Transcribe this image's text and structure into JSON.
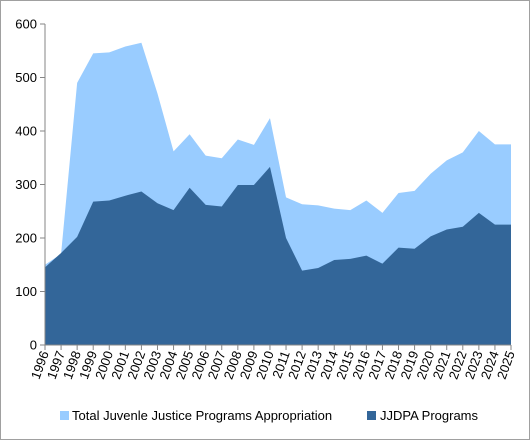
{
  "chart_data": {
    "type": "area",
    "title": "",
    "xlabel": "",
    "ylabel": "",
    "ylim": [
      0,
      600
    ],
    "yticks": [
      0,
      100,
      200,
      300,
      400,
      500,
      600
    ],
    "grid": false,
    "legend_position": "bottom",
    "x": [
      "1996",
      "1997",
      "1998",
      "1999",
      "2000",
      "2001",
      "2002",
      "2003",
      "2004",
      "2005",
      "2006",
      "2007",
      "2008",
      "2009",
      "2010",
      "2011",
      "2012",
      "2013",
      "2014",
      "2015",
      "2016",
      "2017",
      "2018",
      "2019",
      "2020",
      "2021",
      "2022",
      "2023",
      "2024",
      "2025"
    ],
    "series": [
      {
        "name": "Total Juvenle Justice Programs Appropriation",
        "color": "#99ccff",
        "values": [
          150,
          170,
          490,
          545,
          547,
          558,
          565,
          470,
          362,
          394,
          354,
          349,
          384,
          374,
          424,
          276,
          263,
          261,
          255,
          252,
          270,
          247,
          284,
          288,
          320,
          345,
          360,
          400,
          375,
          375
        ]
      },
      {
        "name": "JJDPA Programs",
        "color": "#336699",
        "values": [
          145,
          172,
          202,
          268,
          270,
          279,
          287,
          265,
          252,
          294,
          262,
          259,
          299,
          299,
          333,
          200,
          139,
          144,
          159,
          161,
          167,
          152,
          182,
          180,
          203,
          216,
          221,
          247,
          225,
          225
        ]
      }
    ]
  }
}
